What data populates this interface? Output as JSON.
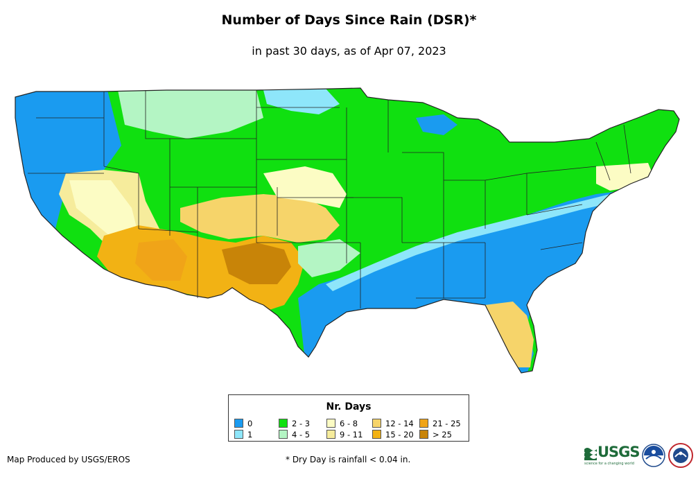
{
  "title": "Number of Days Since Rain (DSR)*",
  "subtitle": "in past 30 days, as of Apr 07, 2023",
  "legend": {
    "title": "Nr. Days",
    "items": [
      {
        "label": "0",
        "color": "#1a9bf0"
      },
      {
        "label": "1",
        "color": "#8ee6fa"
      },
      {
        "label": "2 - 3",
        "color": "#10e010"
      },
      {
        "label": "4 - 5",
        "color": "#b4f5c4"
      },
      {
        "label": "6 - 8",
        "color": "#fcfcc4"
      },
      {
        "label": "9 - 11",
        "color": "#f6ec9c"
      },
      {
        "label": "12 - 14",
        "color": "#f6d46a"
      },
      {
        "label": "15 - 20",
        "color": "#f2b214"
      },
      {
        "label": "21 - 25",
        "color": "#f0a418"
      },
      {
        "label": "> 25",
        "color": "#c88408"
      }
    ]
  },
  "footer": {
    "credit": "Map Produced by USGS/EROS",
    "note": "* Dry Day is rainfall < 0.04 in."
  },
  "logos": {
    "usgs_text": "USGS",
    "usgs_tagline": "science for a changing world",
    "noaa_icon": "noaa-logo-icon",
    "nws_icon": "nws-logo-icon"
  }
}
